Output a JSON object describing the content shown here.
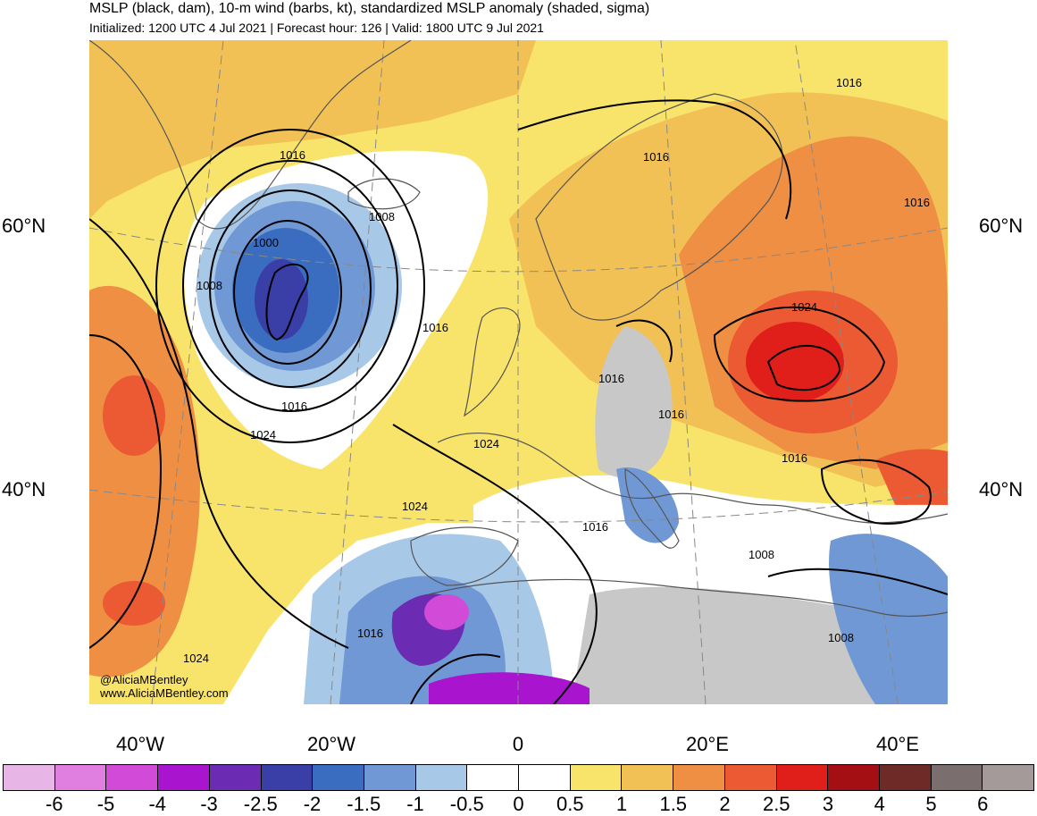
{
  "header": {
    "title": "MSLP (black, dam), 10-m wind (barbs, kt), standardized MSLP anomaly (shaded, sigma)",
    "subtitle": "Initialized: 1200 UTC 4 Jul 2021 | Forecast hour: 126 | Valid: 1800 UTC 9 Jul 2021"
  },
  "credit": {
    "handle": "@AliciaMBentley",
    "site": "www.AliciaMBentley.com"
  },
  "axes": {
    "lat_labels": [
      "60°N",
      "40°N"
    ],
    "lon_labels": [
      "40°W",
      "20°W",
      "0",
      "20°E",
      "40°E"
    ]
  },
  "contour_labels": [
    "1016",
    "1016",
    "1016",
    "1016",
    "1008",
    "1000",
    "1008",
    "1016",
    "1016",
    "1024",
    "1024",
    "1016",
    "1024",
    "1016",
    "1024",
    "1016",
    "1008",
    "1016",
    "1008",
    "1024"
  ],
  "colorbar": {
    "tick_labels": [
      "-6",
      "-5",
      "-4",
      "-3",
      "-2.5",
      "-2",
      "-1.5",
      "-1",
      "-0.5",
      "0",
      "0.5",
      "1",
      "1.5",
      "2",
      "2.5",
      "3",
      "4",
      "5",
      "6"
    ],
    "colors": [
      "#e8b6e6",
      "#e07fdf",
      "#d24ad8",
      "#a914cf",
      "#6b2bb3",
      "#3a3fa8",
      "#3a6dc0",
      "#6f98d4",
      "#a8c8e8",
      "#ffffff",
      "#ffffff",
      "#f9e46b",
      "#f2c156",
      "#ee8f43",
      "#ec5a33",
      "#e01f1b",
      "#a40f14",
      "#6e2a26",
      "#7a6e6e",
      "#a49a9a"
    ]
  },
  "colors": {
    "land_outline": "#555555",
    "contour": "#000000",
    "grid": "#888888"
  }
}
